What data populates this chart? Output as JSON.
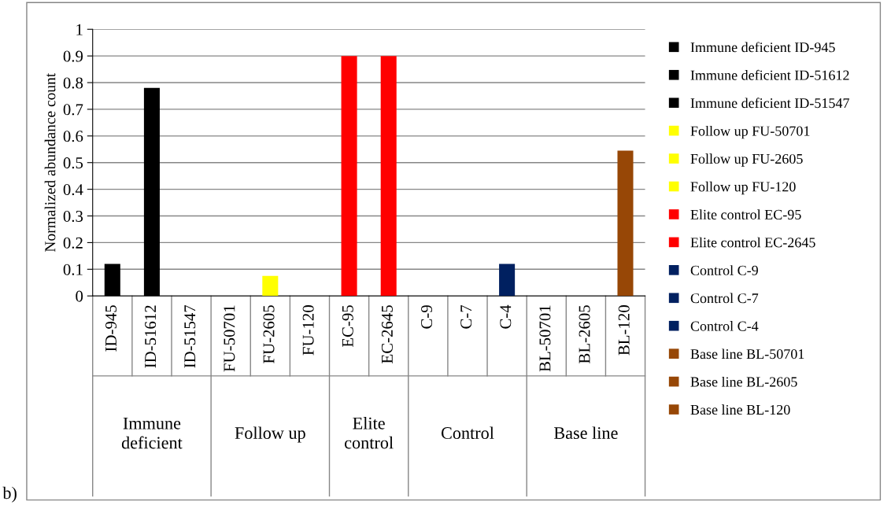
{
  "chart_data": {
    "type": "bar",
    "ylabel": "Normalized abundance count",
    "categories": [
      "ID-945",
      "ID-51612",
      "ID-51547",
      "FU-50701",
      "FU-2605",
      "FU-120",
      "EC-95",
      "EC-2645",
      "C-9",
      "C-7",
      "C-4",
      "BL-50701",
      "BL-2605",
      "BL-120"
    ],
    "series": [
      {
        "name": "Immune deficient ID-945",
        "color": "#000000",
        "values": [
          0.12,
          null,
          null,
          null,
          null,
          null,
          null,
          null,
          null,
          null,
          null,
          null,
          null,
          null
        ]
      },
      {
        "name": "Immune deficient ID-51612",
        "color": "#000000",
        "values": [
          null,
          0.78,
          null,
          null,
          null,
          null,
          null,
          null,
          null,
          null,
          null,
          null,
          null,
          null
        ]
      },
      {
        "name": "Immune deficient ID-51547",
        "color": "#000000",
        "values": [
          null,
          null,
          0,
          null,
          null,
          null,
          null,
          null,
          null,
          null,
          null,
          null,
          null,
          null
        ]
      },
      {
        "name": "Follow up FU-50701",
        "color": "#ffff00",
        "values": [
          null,
          null,
          null,
          0,
          null,
          null,
          null,
          null,
          null,
          null,
          null,
          null,
          null,
          null
        ]
      },
      {
        "name": "Follow up FU-2605",
        "color": "#ffff00",
        "values": [
          null,
          null,
          null,
          null,
          0.075,
          null,
          null,
          null,
          null,
          null,
          null,
          null,
          null,
          null
        ]
      },
      {
        "name": "Follow up FU-120",
        "color": "#ffff00",
        "values": [
          null,
          null,
          null,
          null,
          null,
          0,
          null,
          null,
          null,
          null,
          null,
          null,
          null,
          null
        ]
      },
      {
        "name": "Elite control EC-95",
        "color": "#ff0000",
        "values": [
          null,
          null,
          null,
          null,
          null,
          null,
          0.9,
          null,
          null,
          null,
          null,
          null,
          null,
          null
        ]
      },
      {
        "name": "Elite control EC-2645",
        "color": "#ff0000",
        "values": [
          null,
          null,
          null,
          null,
          null,
          null,
          null,
          0.9,
          null,
          null,
          null,
          null,
          null,
          null
        ]
      },
      {
        "name": "Control C-9",
        "color": "#002060",
        "values": [
          null,
          null,
          null,
          null,
          null,
          null,
          null,
          null,
          0,
          null,
          null,
          null,
          null,
          null
        ]
      },
      {
        "name": "Control C-7",
        "color": "#002060",
        "values": [
          null,
          null,
          null,
          null,
          null,
          null,
          null,
          null,
          null,
          0,
          null,
          null,
          null,
          null
        ]
      },
      {
        "name": "Control C-4",
        "color": "#002060",
        "values": [
          null,
          null,
          null,
          null,
          null,
          null,
          null,
          null,
          null,
          null,
          0.12,
          null,
          null,
          null
        ]
      },
      {
        "name": "Base line BL-50701",
        "color": "#974706",
        "values": [
          null,
          null,
          null,
          null,
          null,
          null,
          null,
          null,
          null,
          null,
          null,
          0,
          null,
          null
        ]
      },
      {
        "name": "Base line BL-2605",
        "color": "#974706",
        "values": [
          null,
          null,
          null,
          null,
          null,
          null,
          null,
          null,
          null,
          null,
          null,
          null,
          0,
          null
        ]
      },
      {
        "name": "Base line BL-120",
        "color": "#974706",
        "values": [
          null,
          null,
          null,
          null,
          null,
          null,
          null,
          null,
          null,
          null,
          null,
          null,
          null,
          0.545
        ]
      }
    ],
    "ylim": [
      0,
      1
    ],
    "yticks": [
      0,
      0.1,
      0.2,
      0.3,
      0.4,
      0.5,
      0.6,
      0.7,
      0.8,
      0.9,
      1
    ],
    "grid": "y",
    "legend": "right",
    "annotations": [
      "Immune\ndeficient",
      "Follow up",
      "Elite\ncontrol",
      "Control",
      "Base line",
      "b)"
    ]
  }
}
